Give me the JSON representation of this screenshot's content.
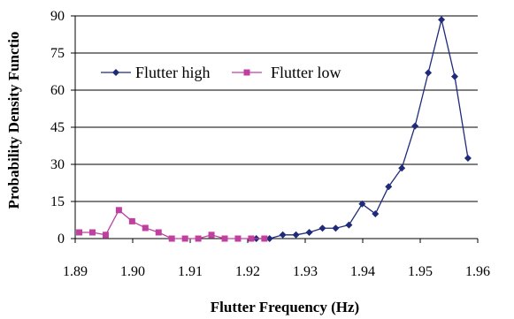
{
  "chart_data": {
    "type": "line",
    "title": "",
    "xlabel": "Flutter Frequency (Hz)",
    "ylabel": "Probability Density Functio",
    "xlim": [
      1.89,
      1.96
    ],
    "ylim": [
      0,
      90
    ],
    "x_ticks": [
      "1.89",
      "1.90",
      "1.91",
      "1.92",
      "1.93",
      "1.94",
      "1.95",
      "1.96"
    ],
    "y_ticks": [
      "0",
      "15",
      "30",
      "45",
      "60",
      "75",
      "90"
    ],
    "grid": "horizontal",
    "legend_position": "upper-left",
    "series": [
      {
        "name": "Flutter high",
        "color": "#1f2a7a",
        "marker": "diamond",
        "x": [
          1.9215,
          1.9238,
          1.9261,
          1.9284,
          1.9307,
          1.933,
          1.9353,
          1.9376,
          1.9399,
          1.9422,
          1.9445,
          1.9468,
          1.9491,
          1.9514,
          1.9537,
          1.956,
          1.9583
        ],
        "y": [
          0,
          0,
          1.5,
          1.5,
          2.5,
          4.2,
          4.2,
          5.5,
          14,
          10,
          21,
          28.5,
          45.5,
          67,
          88.5,
          65.5,
          32.5
        ]
      },
      {
        "name": "Flutter low",
        "color": "#c040a0",
        "marker": "square",
        "x": [
          1.8907,
          1.893,
          1.8953,
          1.8976,
          1.8999,
          1.9022,
          1.9045,
          1.9068,
          1.9091,
          1.9114,
          1.9137,
          1.916,
          1.9183,
          1.9206,
          1.9229
        ],
        "y": [
          2.5,
          2.5,
          1.5,
          11.5,
          7,
          4.3,
          2.5,
          0,
          0,
          0,
          1.5,
          0,
          0,
          0,
          0
        ]
      }
    ]
  }
}
